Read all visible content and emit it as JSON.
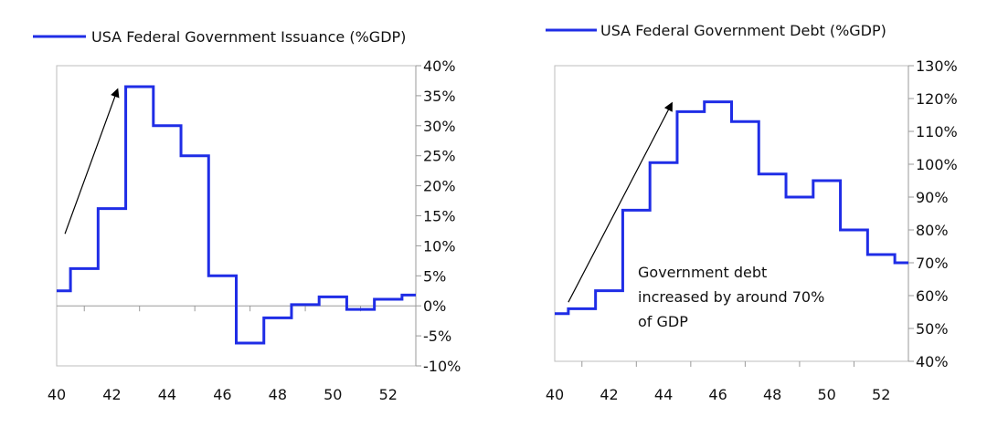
{
  "chart_data": [
    {
      "type": "line",
      "step": true,
      "legend": "USA Federal Government Issuance (%GDP)",
      "legend_position": "top",
      "color": "#1f2de6",
      "xlim": [
        40,
        53
      ],
      "xticks": [
        40,
        42,
        44,
        46,
        48,
        50,
        52
      ],
      "xtick_labels": [
        "40",
        "42",
        "44",
        "46",
        "48",
        "50",
        "52"
      ],
      "ylim": [
        -10,
        40
      ],
      "yticks": [
        -10,
        -5,
        0,
        5,
        10,
        15,
        20,
        25,
        30,
        35,
        40
      ],
      "ytick_labels": [
        "-10%",
        "-5%",
        "0%",
        "5%",
        "10%",
        "15%",
        "20%",
        "25%",
        "30%",
        "35%",
        "40%"
      ],
      "y_axis_side": "right",
      "grid": false,
      "series": [
        {
          "name": "USA Federal Government Issuance (%GDP)",
          "x": [
            39.9,
            40.5,
            41.5,
            42.5,
            43.5,
            44.5,
            45.5,
            46.5,
            47.5,
            48.5,
            49.5,
            50.5,
            51.5,
            52.5
          ],
          "values": [
            2.5,
            6.2,
            16.2,
            36.5,
            30.0,
            25.0,
            5.0,
            -6.2,
            -2.0,
            0.2,
            1.5,
            -0.6,
            1.1,
            1.8
          ]
        }
      ],
      "annotations": [
        {
          "type": "arrow",
          "from": [
            40.3,
            12.0
          ],
          "to": [
            42.2,
            36.0
          ]
        }
      ]
    },
    {
      "type": "line",
      "step": true,
      "legend": "USA Federal Government Debt (%GDP)",
      "legend_position": "top",
      "color": "#1f2de6",
      "xlim": [
        40,
        53
      ],
      "xticks": [
        40,
        42,
        44,
        46,
        48,
        50,
        52
      ],
      "xtick_labels": [
        "40",
        "42",
        "44",
        "46",
        "48",
        "50",
        "52"
      ],
      "ylim": [
        40,
        130
      ],
      "yticks": [
        40,
        50,
        60,
        70,
        80,
        90,
        100,
        110,
        120,
        130
      ],
      "ytick_labels": [
        "40%",
        "50%",
        "60%",
        "70%",
        "80%",
        "90%",
        "100%",
        "110%",
        "120%",
        "130%"
      ],
      "y_axis_side": "right",
      "grid": false,
      "series": [
        {
          "name": "USA Federal Government Debt (%GDP)",
          "x": [
            39.9,
            40.5,
            41.5,
            42.5,
            43.5,
            44.5,
            45.5,
            46.5,
            47.5,
            48.5,
            49.5,
            50.5,
            51.5,
            52.5
          ],
          "values": [
            54.5,
            56.0,
            61.5,
            86.0,
            100.5,
            116.0,
            119.0,
            113.0,
            97.0,
            90.0,
            95.0,
            80.0,
            72.5,
            70.0
          ]
        }
      ],
      "annotations": [
        {
          "type": "arrow",
          "from": [
            40.5,
            58.0
          ],
          "to": [
            44.3,
            118.5
          ]
        },
        {
          "type": "text",
          "lines": [
            "Government debt",
            "increased by around 70%",
            "of GDP"
          ]
        }
      ]
    }
  ]
}
